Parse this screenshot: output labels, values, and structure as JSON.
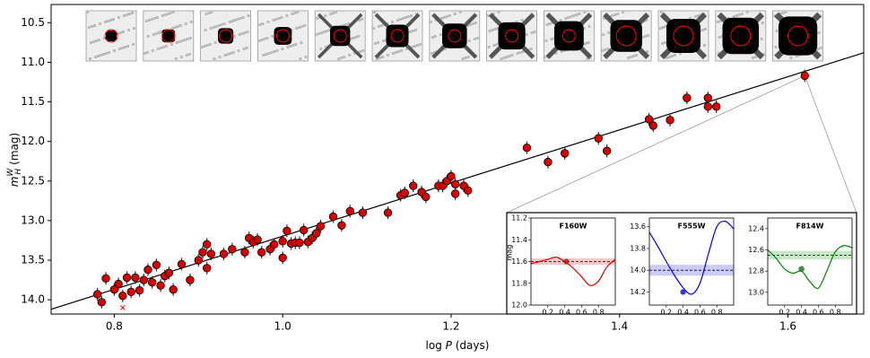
{
  "chart_data": {
    "type": "scatter",
    "xlabel": {
      "pre": "log",
      "var": "P",
      "post": "(days)"
    },
    "ylabel": {
      "symbol": "m",
      "sub": "H",
      "sup": "W",
      "unit": "(mag)"
    },
    "xlim": [
      0.725,
      1.69
    ],
    "ylim": [
      10.27,
      14.18
    ],
    "invert_y": true,
    "xticks": [
      0.8,
      {
        "value": 1.0,
        "label": "1.0"
      },
      1.2,
      1.4,
      1.6
    ],
    "yticks": [
      10.5,
      {
        "value": 11.0,
        "label": "11.0"
      },
      11.5,
      {
        "value": 12.0,
        "label": "12.0"
      },
      12.5,
      {
        "value": 13.0,
        "label": "13.0"
      },
      13.5,
      {
        "value": 14.0,
        "label": "14.0"
      }
    ],
    "series": [
      {
        "color": "#d40000",
        "error": 0.08,
        "x": [
          0.78,
          0.785,
          0.79,
          0.8,
          0.805,
          0.81,
          0.815,
          0.82,
          0.825,
          0.83,
          0.835,
          0.84,
          0.845,
          0.85,
          0.855,
          0.86,
          0.865,
          0.87,
          0.88,
          0.89,
          0.9,
          0.905,
          0.91,
          0.91,
          0.915,
          0.93,
          0.94,
          0.955,
          0.96,
          0.965,
          0.97,
          0.975,
          0.985,
          0.99,
          1.0,
          1.0,
          1.005,
          1.01,
          1.015,
          1.02,
          1.025,
          1.03,
          1.035,
          1.04,
          1.045,
          1.06,
          1.07,
          1.08,
          1.095,
          1.125,
          1.14,
          1.145,
          1.155,
          1.165,
          1.17,
          1.185,
          1.19,
          1.195,
          1.2,
          1.205,
          1.205,
          1.215,
          1.22,
          1.29,
          1.315,
          1.335,
          1.375,
          1.385,
          1.435,
          1.44,
          1.46,
          1.48,
          1.505,
          1.505,
          1.515,
          1.62
        ],
        "values": [
          13.93,
          14.03,
          13.73,
          13.87,
          13.8,
          13.95,
          13.72,
          13.9,
          13.72,
          13.88,
          13.75,
          13.62,
          13.78,
          13.56,
          13.82,
          13.7,
          13.66,
          13.87,
          13.55,
          13.75,
          13.5,
          13.4,
          13.3,
          13.6,
          13.42,
          13.42,
          13.36,
          13.4,
          13.22,
          13.27,
          13.24,
          13.4,
          13.36,
          13.3,
          13.26,
          13.47,
          13.13,
          13.29,
          13.28,
          13.28,
          13.12,
          13.27,
          13.22,
          13.16,
          13.07,
          12.95,
          13.06,
          12.88,
          12.9,
          12.9,
          12.68,
          12.65,
          12.56,
          12.64,
          12.7,
          12.56,
          12.56,
          12.5,
          12.44,
          12.66,
          12.54,
          12.56,
          12.62,
          12.08,
          12.26,
          12.15,
          11.96,
          12.12,
          11.72,
          11.8,
          11.73,
          11.45,
          11.45,
          11.56,
          11.56,
          11.17
        ]
      }
    ],
    "rejected": {
      "color": "#e00000",
      "x": [
        0.81
      ],
      "values": [
        14.1
      ]
    },
    "fit": {
      "color": "#000000",
      "x": [
        0.725,
        1.69
      ],
      "values": [
        14.12,
        10.88
      ]
    },
    "insets": [
      {
        "type": "line",
        "title": "F160W",
        "ylabel": "mag",
        "color": "#e00000",
        "band_color": "#f4a0a0",
        "x": [
          0,
          0.1,
          0.2,
          0.3,
          0.4,
          0.5,
          0.6,
          0.7,
          0.8,
          0.9,
          1.0
        ],
        "values": [
          11.62,
          11.6,
          11.58,
          11.56,
          11.6,
          11.66,
          11.74,
          11.82,
          11.78,
          11.65,
          11.58
        ],
        "mean": 11.6,
        "band": 0.03,
        "point": {
          "x": 0.42,
          "value": 11.6
        },
        "xlim": [
          0,
          1
        ],
        "ylim": [
          11.2,
          12.0
        ],
        "xticks": [
          0.2,
          0.4,
          0.6,
          0.8
        ],
        "yticks": [
          11.2,
          11.4,
          11.6,
          11.8,
          {
            "value": 12.0,
            "label": "12.0"
          }
        ]
      },
      {
        "type": "line",
        "title": "F555W",
        "color": "#0000e0",
        "band_color": "#a8a8f4",
        "x": [
          0,
          0.1,
          0.2,
          0.3,
          0.4,
          0.5,
          0.6,
          0.7,
          0.8,
          0.9,
          1.0
        ],
        "values": [
          13.65,
          13.78,
          13.92,
          14.05,
          14.16,
          14.22,
          14.12,
          13.85,
          13.6,
          13.55,
          13.62
        ],
        "mean": 14.0,
        "band": 0.05,
        "point": {
          "x": 0.4,
          "value": 14.2
        },
        "xlim": [
          0,
          1
        ],
        "ylim": [
          13.52,
          14.32
        ],
        "xticks": [
          0.2,
          0.4,
          0.6,
          0.8
        ],
        "yticks": [
          13.6,
          13.8,
          {
            "value": 14.0,
            "label": "14.0"
          },
          14.2
        ]
      },
      {
        "type": "line",
        "title": "F814W",
        "color": "#008000",
        "band_color": "#a0d8a0",
        "x": [
          0,
          0.1,
          0.2,
          0.3,
          0.4,
          0.5,
          0.6,
          0.7,
          0.8,
          0.9,
          1.0
        ],
        "values": [
          12.6,
          12.68,
          12.78,
          12.82,
          12.8,
          12.9,
          12.96,
          12.8,
          12.62,
          12.56,
          12.58
        ],
        "mean": 12.65,
        "band": 0.04,
        "point": {
          "x": 0.4,
          "value": 12.78
        },
        "xlim": [
          0,
          1
        ],
        "ylim": [
          12.3,
          13.12
        ],
        "xticks": [
          0.2,
          0.4,
          0.6,
          0.8
        ],
        "yticks": [
          12.4,
          12.6,
          12.8,
          {
            "value": 13.0,
            "label": "13.0"
          }
        ]
      }
    ]
  }
}
